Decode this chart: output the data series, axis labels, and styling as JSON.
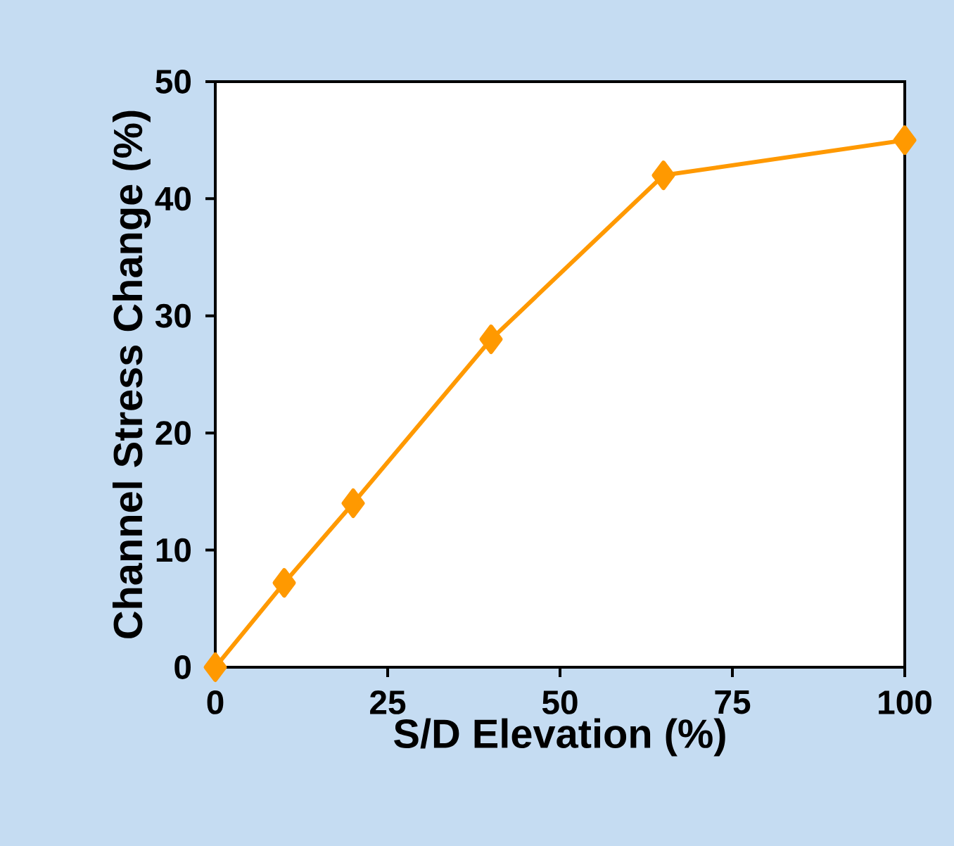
{
  "chart_data": {
    "type": "line",
    "xlabel": "S/D Elevation (%)",
    "ylabel": "Channel Stress Change (%)",
    "x": [
      0,
      10,
      20,
      40,
      65,
      100
    ],
    "series": [
      {
        "color": "#ff9900",
        "values": [
          0,
          7.2,
          14,
          28,
          42,
          45
        ]
      }
    ],
    "xlim": [
      0,
      100
    ],
    "ylim": [
      0,
      50
    ],
    "xticks": [
      0,
      25,
      50,
      75,
      100
    ],
    "yticks": [
      0,
      10,
      20,
      30,
      40,
      50
    ],
    "marker": "diamond",
    "line_style": "solid"
  }
}
